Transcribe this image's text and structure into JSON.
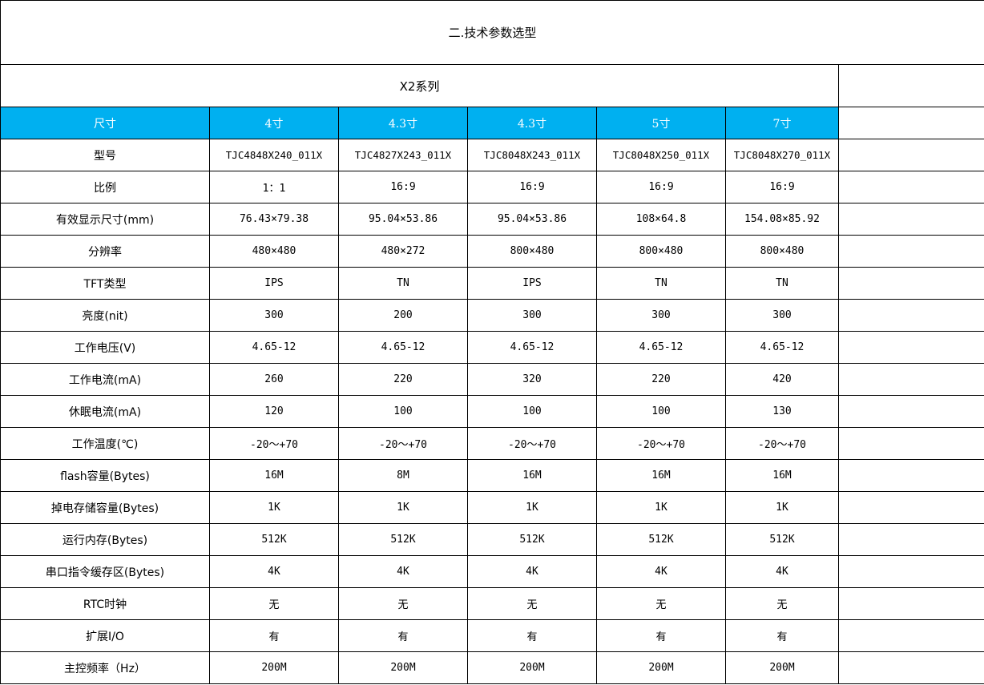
{
  "title": "二.技术参数选型",
  "series": "X2系列",
  "header": {
    "label": "尺寸",
    "sizes": [
      "4寸",
      "4.3寸",
      "4.3寸",
      "5寸",
      "7寸"
    ]
  },
  "rows": [
    {
      "label": "型号",
      "values": [
        "TJC4848X240_011X",
        "TJC4827X243_011X",
        "TJC8048X243_011X",
        "TJC8048X250_011X",
        "TJC8048X270_011X"
      ]
    },
    {
      "label": "比例",
      "values": [
        "1：1",
        "16:9",
        "16:9",
        "16:9",
        "16:9"
      ]
    },
    {
      "label": "有效显示尺寸(mm)",
      "values": [
        "76.43×79.38",
        "95.04×53.86",
        "95.04×53.86",
        "108×64.8",
        "154.08×85.92"
      ]
    },
    {
      "label": "分辨率",
      "values": [
        "480×480",
        "480×272",
        "800×480",
        "800×480",
        "800×480"
      ]
    },
    {
      "label": "TFT类型",
      "values": [
        "IPS",
        "TN",
        "IPS",
        "TN",
        "TN"
      ]
    },
    {
      "label": "亮度(nit)",
      "values": [
        "300",
        "200",
        "300",
        "300",
        "300"
      ]
    },
    {
      "label": "工作电压(V)",
      "values": [
        "4.65-12",
        "4.65-12",
        "4.65-12",
        "4.65-12",
        "4.65-12"
      ]
    },
    {
      "label": "工作电流(mA)",
      "values": [
        "260",
        "220",
        "320",
        "220",
        "420"
      ]
    },
    {
      "label": "休眠电流(mA)",
      "values": [
        "120",
        "100",
        "100",
        "100",
        "130"
      ]
    },
    {
      "label": "工作温度(℃)",
      "values": [
        "-20～+70",
        "-20～+70",
        "-20～+70",
        "-20～+70",
        "-20～+70"
      ]
    },
    {
      "label": "flash容量(Bytes)",
      "values": [
        "16M",
        "8M",
        "16M",
        "16M",
        "16M"
      ]
    },
    {
      "label": "掉电存储容量(Bytes)",
      "values": [
        "1K",
        "1K",
        "1K",
        "1K",
        "1K"
      ]
    },
    {
      "label": "运行内存(Bytes)",
      "values": [
        "512K",
        "512K",
        "512K",
        "512K",
        "512K"
      ]
    },
    {
      "label": "串口指令缓存区(Bytes)",
      "values": [
        "4K",
        "4K",
        "4K",
        "4K",
        "4K"
      ]
    },
    {
      "label": "RTC时钟",
      "values": [
        "无",
        "无",
        "无",
        "无",
        "无"
      ]
    },
    {
      "label": "扩展I/O",
      "values": [
        "有",
        "有",
        "有",
        "有",
        "有"
      ]
    },
    {
      "label": "主控频率（Hz）",
      "values": [
        "200M",
        "200M",
        "200M",
        "200M",
        "200M"
      ]
    }
  ],
  "colors": {
    "header_bg": "#00b0f0",
    "header_text": "#ffffff",
    "border": "#000000"
  }
}
